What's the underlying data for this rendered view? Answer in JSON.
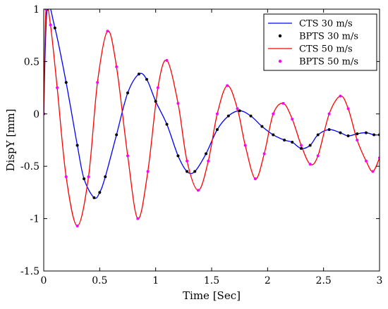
{
  "chart_data": {
    "type": "line",
    "title": "",
    "xlabel": "Time [Sec]",
    "ylabel": "DispY [mm]",
    "xlim": [
      0,
      3
    ],
    "ylim": [
      -1.5,
      1
    ],
    "x_ticks": [
      0,
      0.5,
      1,
      1.5,
      2,
      2.5,
      3
    ],
    "x_tick_labels": [
      "0",
      "0.5",
      "1",
      "1.5",
      "2",
      "2.5",
      "3"
    ],
    "y_ticks": [
      -1.5,
      -1,
      -0.5,
      0,
      0.5,
      1
    ],
    "y_tick_labels": [
      "-1.5",
      "-1",
      "-0.5",
      "0",
      "0.5",
      "1"
    ],
    "grid": false,
    "legend_position": "top-right",
    "series": [
      {
        "name": "CTS 30 m/s",
        "style": "line",
        "color": "#0000ff",
        "points": [
          [
            0,
            0
          ],
          [
            0.03,
            1.0
          ],
          [
            0.1,
            0.82
          ],
          [
            0.2,
            0.3
          ],
          [
            0.3,
            -0.3
          ],
          [
            0.36,
            -0.62
          ],
          [
            0.45,
            -0.8
          ],
          [
            0.5,
            -0.75
          ],
          [
            0.55,
            -0.6
          ],
          [
            0.65,
            -0.2
          ],
          [
            0.75,
            0.2
          ],
          [
            0.85,
            0.38
          ],
          [
            0.92,
            0.33
          ],
          [
            1.0,
            0.12
          ],
          [
            1.1,
            -0.1
          ],
          [
            1.2,
            -0.4
          ],
          [
            1.28,
            -0.55
          ],
          [
            1.35,
            -0.55
          ],
          [
            1.45,
            -0.38
          ],
          [
            1.55,
            -0.15
          ],
          [
            1.65,
            -0.02
          ],
          [
            1.75,
            0.03
          ],
          [
            1.85,
            -0.02
          ],
          [
            1.95,
            -0.12
          ],
          [
            2.05,
            -0.2
          ],
          [
            2.15,
            -0.25
          ],
          [
            2.22,
            -0.27
          ],
          [
            2.3,
            -0.33
          ],
          [
            2.38,
            -0.3
          ],
          [
            2.45,
            -0.2
          ],
          [
            2.55,
            -0.15
          ],
          [
            2.65,
            -0.18
          ],
          [
            2.72,
            -0.21
          ],
          [
            2.8,
            -0.19
          ],
          [
            2.88,
            -0.18
          ],
          [
            2.95,
            -0.2
          ],
          [
            3.0,
            -0.2
          ]
        ]
      },
      {
        "name": "BPTS 30 m/s",
        "style": "markers",
        "color": "#000000",
        "points": [
          [
            0,
            0
          ],
          [
            0.03,
            1.0
          ],
          [
            0.1,
            0.82
          ],
          [
            0.2,
            0.3
          ],
          [
            0.3,
            -0.3
          ],
          [
            0.36,
            -0.62
          ],
          [
            0.45,
            -0.8
          ],
          [
            0.5,
            -0.75
          ],
          [
            0.55,
            -0.6
          ],
          [
            0.65,
            -0.2
          ],
          [
            0.75,
            0.2
          ],
          [
            0.85,
            0.38
          ],
          [
            0.92,
            0.33
          ],
          [
            1.0,
            0.12
          ],
          [
            1.1,
            -0.1
          ],
          [
            1.2,
            -0.4
          ],
          [
            1.28,
            -0.55
          ],
          [
            1.35,
            -0.55
          ],
          [
            1.45,
            -0.38
          ],
          [
            1.55,
            -0.15
          ],
          [
            1.65,
            -0.02
          ],
          [
            1.75,
            0.03
          ],
          [
            1.85,
            -0.02
          ],
          [
            1.95,
            -0.12
          ],
          [
            2.05,
            -0.2
          ],
          [
            2.15,
            -0.25
          ],
          [
            2.22,
            -0.27
          ],
          [
            2.3,
            -0.33
          ],
          [
            2.38,
            -0.3
          ],
          [
            2.45,
            -0.2
          ],
          [
            2.55,
            -0.15
          ],
          [
            2.65,
            -0.18
          ],
          [
            2.72,
            -0.21
          ],
          [
            2.8,
            -0.19
          ],
          [
            2.88,
            -0.18
          ],
          [
            2.95,
            -0.2
          ],
          [
            3.0,
            -0.2
          ]
        ]
      },
      {
        "name": "CTS 50 m/s",
        "style": "line",
        "color": "#ff0000",
        "points": [
          [
            0,
            0
          ],
          [
            0.02,
            1.0
          ],
          [
            0.06,
            0.85
          ],
          [
            0.12,
            0.25
          ],
          [
            0.2,
            -0.6
          ],
          [
            0.3,
            -1.07
          ],
          [
            0.4,
            -0.6
          ],
          [
            0.48,
            0.3
          ],
          [
            0.57,
            0.79
          ],
          [
            0.65,
            0.45
          ],
          [
            0.75,
            -0.4
          ],
          [
            0.84,
            -1.0
          ],
          [
            0.93,
            -0.55
          ],
          [
            1.02,
            0.25
          ],
          [
            1.1,
            0.51
          ],
          [
            1.2,
            0.1
          ],
          [
            1.28,
            -0.45
          ],
          [
            1.38,
            -0.73
          ],
          [
            1.47,
            -0.45
          ],
          [
            1.55,
            0.0
          ],
          [
            1.64,
            0.27
          ],
          [
            1.73,
            0.05
          ],
          [
            1.8,
            -0.3
          ],
          [
            1.89,
            -0.62
          ],
          [
            1.97,
            -0.38
          ],
          [
            2.05,
            0.0
          ],
          [
            2.14,
            0.1
          ],
          [
            2.22,
            -0.05
          ],
          [
            2.3,
            -0.3
          ],
          [
            2.38,
            -0.48
          ],
          [
            2.45,
            -0.4
          ],
          [
            2.55,
            0.0
          ],
          [
            2.65,
            0.17
          ],
          [
            2.72,
            0.05
          ],
          [
            2.8,
            -0.25
          ],
          [
            2.88,
            -0.45
          ],
          [
            2.94,
            -0.55
          ],
          [
            3.0,
            -0.42
          ]
        ]
      },
      {
        "name": "BPTS 50 m/s",
        "style": "markers",
        "color": "#ff00ff",
        "points": [
          [
            0,
            0
          ],
          [
            0.02,
            1.0
          ],
          [
            0.06,
            0.85
          ],
          [
            0.12,
            0.25
          ],
          [
            0.2,
            -0.6
          ],
          [
            0.3,
            -1.07
          ],
          [
            0.4,
            -0.6
          ],
          [
            0.48,
            0.3
          ],
          [
            0.57,
            0.79
          ],
          [
            0.65,
            0.45
          ],
          [
            0.75,
            -0.4
          ],
          [
            0.84,
            -1.0
          ],
          [
            0.93,
            -0.55
          ],
          [
            1.02,
            0.25
          ],
          [
            1.1,
            0.51
          ],
          [
            1.2,
            0.1
          ],
          [
            1.28,
            -0.45
          ],
          [
            1.38,
            -0.73
          ],
          [
            1.47,
            -0.45
          ],
          [
            1.55,
            0.0
          ],
          [
            1.64,
            0.27
          ],
          [
            1.73,
            0.05
          ],
          [
            1.8,
            -0.3
          ],
          [
            1.89,
            -0.62
          ],
          [
            1.97,
            -0.38
          ],
          [
            2.05,
            0.0
          ],
          [
            2.14,
            0.1
          ],
          [
            2.22,
            -0.05
          ],
          [
            2.3,
            -0.3
          ],
          [
            2.38,
            -0.48
          ],
          [
            2.45,
            -0.4
          ],
          [
            2.55,
            0.0
          ],
          [
            2.65,
            0.17
          ],
          [
            2.72,
            0.05
          ],
          [
            2.8,
            -0.25
          ],
          [
            2.88,
            -0.45
          ],
          [
            2.94,
            -0.55
          ],
          [
            3.0,
            -0.42
          ]
        ]
      }
    ]
  }
}
